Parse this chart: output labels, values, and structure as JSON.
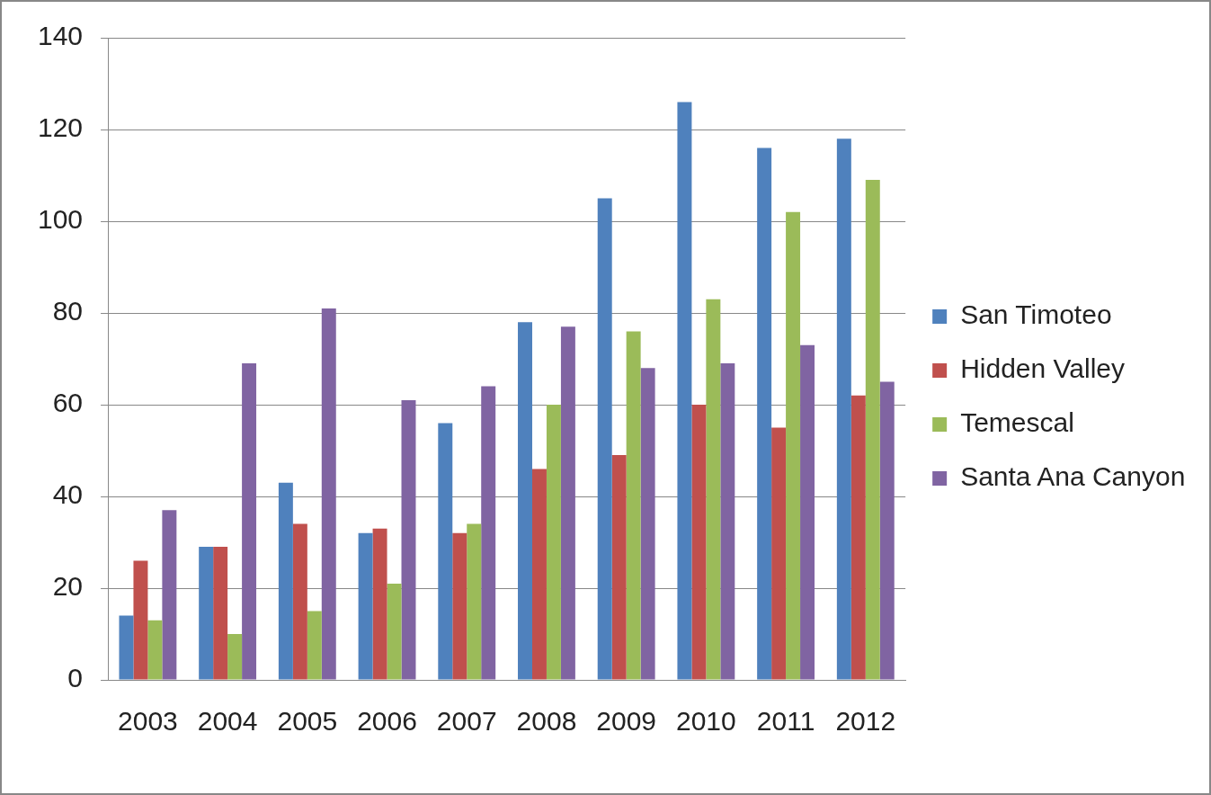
{
  "chart_data": {
    "type": "bar",
    "categories": [
      "2003",
      "2004",
      "2005",
      "2006",
      "2007",
      "2008",
      "2009",
      "2010",
      "2011",
      "2012"
    ],
    "series": [
      {
        "name": "San Timoteo",
        "color": "#4f81bd",
        "values": [
          14,
          29,
          43,
          32,
          56,
          78,
          105,
          126,
          116,
          118
        ]
      },
      {
        "name": "Hidden Valley",
        "color": "#c0504d",
        "values": [
          26,
          29,
          34,
          33,
          32,
          46,
          49,
          60,
          55,
          62
        ]
      },
      {
        "name": "Temescal",
        "color": "#9bbb59",
        "values": [
          13,
          10,
          15,
          21,
          34,
          60,
          76,
          83,
          102,
          109
        ]
      },
      {
        "name": "Santa Ana Canyon",
        "color": "#8064a2",
        "values": [
          37,
          69,
          81,
          61,
          64,
          77,
          68,
          69,
          73,
          65
        ]
      }
    ],
    "ylim": [
      0,
      140
    ],
    "yticks": [
      0,
      20,
      40,
      60,
      80,
      100,
      120,
      140
    ],
    "grid": "y",
    "legend": "right"
  }
}
